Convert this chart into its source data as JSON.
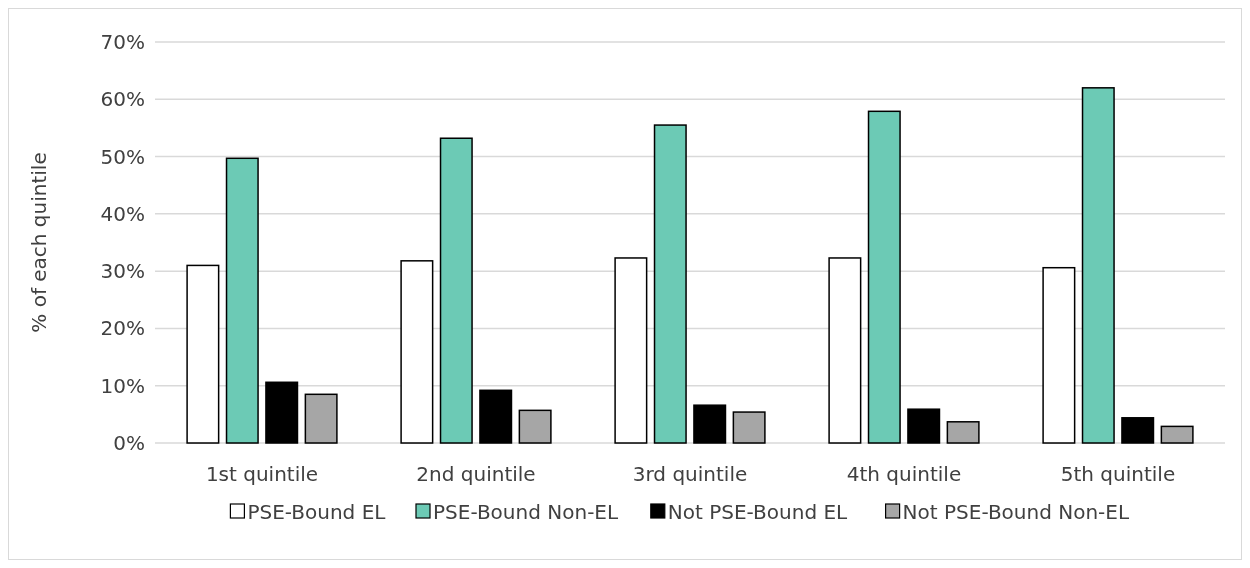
{
  "chart_data": {
    "type": "bar",
    "ylabel": "% of each quintile",
    "categories": [
      "1st quintile",
      "2nd quintile",
      "3rd quintile",
      "4th quintile",
      "5th quintile"
    ],
    "series": [
      {
        "name": "PSE-Bound EL",
        "color": "#ffffff",
        "values": [
          31.0,
          31.8,
          32.3,
          32.3,
          30.6
        ]
      },
      {
        "name": "PSE-Bound Non-EL",
        "color": "#6ccab5",
        "values": [
          49.7,
          53.2,
          55.5,
          57.9,
          62.0
        ]
      },
      {
        "name": "Not PSE-Bound EL",
        "color": "#000000",
        "values": [
          10.6,
          9.2,
          6.6,
          5.9,
          4.4
        ]
      },
      {
        "name": "Not PSE-Bound Non-EL",
        "color": "#a6a6a6",
        "values": [
          8.5,
          5.7,
          5.4,
          3.7,
          2.9
        ]
      }
    ],
    "ylim": [
      0,
      70
    ],
    "yticks": [
      {
        "value": 0,
        "label": "0%"
      },
      {
        "value": 10,
        "label": "10%"
      },
      {
        "value": 20,
        "label": "20%"
      },
      {
        "value": 30,
        "label": "30%"
      },
      {
        "value": 40,
        "label": "40%"
      },
      {
        "value": 50,
        "label": "50%"
      },
      {
        "value": 60,
        "label": "60%"
      },
      {
        "value": 70,
        "label": "70%"
      }
    ],
    "grid": "y",
    "legend": "bottom"
  }
}
